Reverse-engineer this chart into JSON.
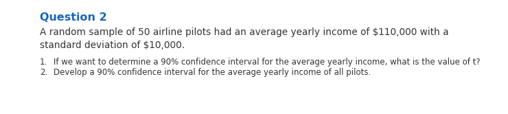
{
  "title": "Question 2",
  "title_color": "#1565C0",
  "title_fontsize": 11.5,
  "body_text": "A random sample of 50 airline pilots had an average yearly income of $110,000 with a\nstandard deviation of $10,000.",
  "body_fontsize": 9.8,
  "body_color": "#333333",
  "items": [
    "If we want to determine a 90% confidence interval for the average yearly income, what is the value of t?",
    "Develop a 90% confidence interval for the average yearly income of all pilots."
  ],
  "item_fontsize": 8.5,
  "item_color": "#333333",
  "background_color": "#ffffff",
  "fig_width": 7.4,
  "fig_height": 1.66,
  "dpi": 100
}
